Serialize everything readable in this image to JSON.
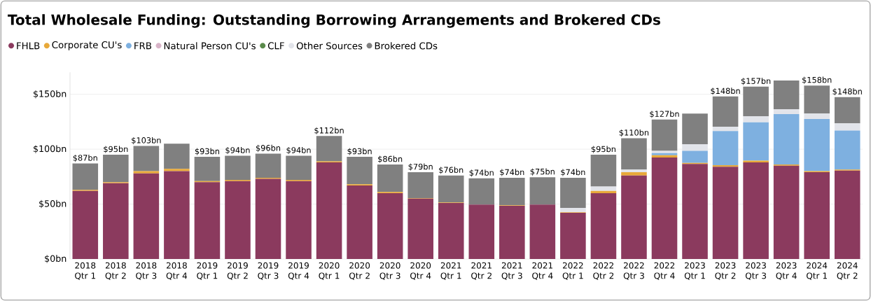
{
  "chart_data": {
    "type": "bar",
    "stacked": true,
    "title": "Total Wholesale Funding: Outstanding Borrowing Arrangements and Brokered CDs",
    "categories": [
      "2018 Qtr 1",
      "2018 Qtr 2",
      "2018 Qtr 3",
      "2018 Qtr 4",
      "2019 Qtr 1",
      "2019 Qtr 2",
      "2019 Qtr 3",
      "2019 Qtr 4",
      "2020 Qtr 1",
      "2020 Qtr 2",
      "2020 Qtr 3",
      "2020 Qtr 4",
      "2021 Qtr 1",
      "2021 Qtr 2",
      "2021 Qtr 3",
      "2021 Qtr 4",
      "2022 Qtr 1",
      "2022 Qtr 2",
      "2022 Qtr 3",
      "2022 Qtr 4",
      "2023 Qtr 1",
      "2023 Qtr 2",
      "2023 Qtr 3",
      "2023 Qtr 4",
      "2024 Qtr 1",
      "2024 Qtr 2"
    ],
    "series": [
      {
        "name": "FHLB",
        "color": "#8b3a5e",
        "values": [
          62,
          69,
          78,
          80,
          70,
          71,
          73,
          71,
          88,
          67,
          60,
          55,
          51,
          49.5,
          48.5,
          49.5,
          42,
          60,
          76,
          92.5,
          86.5,
          84,
          88,
          85,
          79,
          80.5
        ]
      },
      {
        "name": "Corporate CU's",
        "color": "#e8a93a",
        "values": [
          1,
          1,
          2,
          2,
          1,
          1,
          1,
          1,
          1,
          1,
          1,
          0.5,
          0.5,
          null,
          0.5,
          null,
          0.5,
          2,
          3,
          2,
          1,
          1.5,
          1.5,
          1,
          1,
          1
        ]
      },
      {
        "name": "FRB",
        "color": "#7eb0e0",
        "values": [
          0,
          0,
          0,
          0,
          0,
          0,
          0,
          0,
          0,
          0,
          0,
          0,
          0,
          0,
          0,
          0,
          0,
          0,
          0,
          2,
          11,
          31,
          35,
          46,
          47.5,
          35.5
        ]
      },
      {
        "name": "Natural Person CU's",
        "color": "#d8b4c8",
        "values": [
          0,
          0,
          0,
          0,
          0,
          0,
          0,
          0,
          0,
          0,
          0,
          0,
          0,
          0,
          0,
          0,
          0,
          0,
          0,
          0,
          0,
          0,
          0,
          null,
          0,
          null
        ]
      },
      {
        "name": "CLF",
        "color": "#5a8a4a",
        "values": [
          0,
          0,
          0,
          0,
          0,
          0,
          0,
          0,
          0,
          0,
          0,
          0,
          0,
          0,
          0,
          0,
          0,
          0,
          0,
          0,
          0,
          0,
          0,
          0,
          0,
          0
        ]
      },
      {
        "name": "Other Sources",
        "color": "#e2e4ea",
        "values": [
          0,
          0,
          0,
          0,
          0,
          0,
          0,
          0,
          0,
          0,
          0,
          0,
          0,
          0,
          0,
          0,
          4,
          4,
          2.5,
          2,
          6,
          4,
          5.5,
          4.5,
          5,
          6.5
        ]
      },
      {
        "name": "Brokered CDs",
        "color": "#808080",
        "values": [
          24,
          25,
          23,
          23,
          22,
          22,
          22,
          22,
          23,
          25,
          25,
          23.5,
          24.5,
          24,
          25,
          25,
          27.5,
          29,
          28.5,
          28.5,
          28,
          27.5,
          27,
          26,
          25.5,
          24
        ]
      }
    ],
    "totals": [
      "$87bn",
      "$95bn",
      "$103bn",
      null,
      "$93bn",
      "$94bn",
      "$96bn",
      "$94bn",
      "$112bn",
      "$93bn",
      "$86bn",
      "$79bn",
      "$76bn",
      "$74bn",
      "$74bn",
      "$75bn",
      "$74bn",
      "$95bn",
      "$110bn",
      "$127bn",
      null,
      "$148bn",
      "$157bn",
      null,
      "$158bn",
      "$148bn"
    ],
    "ylim": [
      0,
      170
    ],
    "yticks": [
      {
        "value": 0,
        "label": "$0bn"
      },
      {
        "value": 50,
        "label": "$50bn"
      },
      {
        "value": 100,
        "label": "$100bn"
      },
      {
        "value": 150,
        "label": "$150bn"
      }
    ],
    "grid": "y",
    "legend": "top"
  }
}
